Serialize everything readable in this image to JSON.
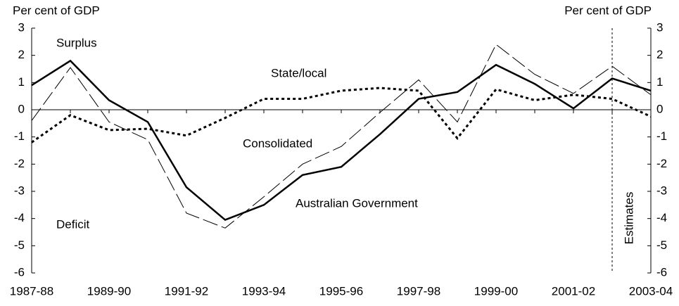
{
  "chart_data": {
    "type": "line",
    "y_label": "Per cent of GDP",
    "y2_label": "Per cent of GDP",
    "categories": [
      "1987-88",
      null,
      "1989-90",
      null,
      "1991-92",
      null,
      "1993-94",
      null,
      "1995-96",
      null,
      "1997-98",
      null,
      "1999-00",
      null,
      "2001-02",
      null,
      "2003-04"
    ],
    "series": [
      {
        "name": "Australian Government",
        "color": "#000000",
        "style": "solid",
        "values": [
          0.9,
          1.8,
          0.35,
          -0.45,
          -2.85,
          -4.05,
          -3.5,
          -2.4,
          -2.1,
          -0.9,
          0.4,
          0.65,
          1.65,
          0.95,
          0.05,
          1.15,
          0.7
        ]
      },
      {
        "name": "Consolidated",
        "color": "#000000",
        "style": "dash",
        "values": [
          -0.4,
          1.55,
          -0.45,
          -1.1,
          -3.8,
          -4.35,
          -3.2,
          -2.0,
          -1.35,
          -0.1,
          1.1,
          -0.45,
          2.4,
          1.3,
          0.6,
          1.6,
          0.55
        ]
      },
      {
        "name": "State/local",
        "color": "#000000",
        "style": "dot",
        "values": [
          -1.2,
          -0.2,
          -0.75,
          -0.7,
          -0.95,
          -0.3,
          0.4,
          0.4,
          0.7,
          0.8,
          0.7,
          -1.05,
          0.75,
          0.35,
          0.55,
          0.4,
          -0.25
        ]
      }
    ],
    "ylim": [
      -6,
      3
    ],
    "yticks": [
      -6,
      -5,
      -4,
      -3,
      -2,
      -1,
      0,
      1,
      2,
      3
    ],
    "y2lim": [
      -6,
      3
    ],
    "y2ticks": [
      -6,
      -5,
      -4,
      -3,
      -2,
      -1,
      0,
      1,
      2,
      3
    ],
    "annotations": {
      "surplus": "Surplus",
      "deficit": "Deficit",
      "estimates": "Estimates"
    },
    "grid": false
  }
}
